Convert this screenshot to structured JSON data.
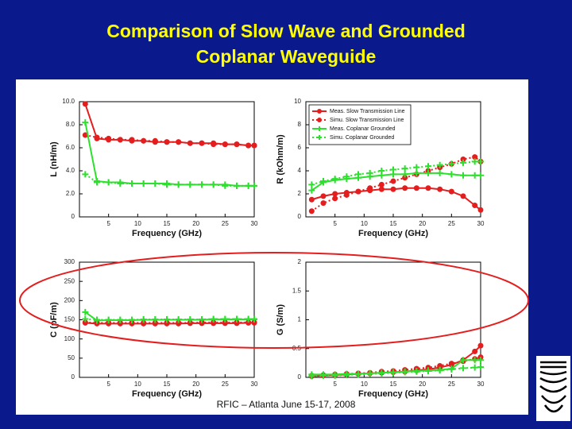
{
  "header": {
    "title_lines": [
      "Comparison of Slow Wave and Grounded",
      "Coplanar Waveguide"
    ]
  },
  "footer": "RFIC – Atlanta June 15-17, 2008",
  "chart_data": [
    {
      "type": "line",
      "xlabel": "Frequency (GHz)",
      "ylabel": "L (nH/m)",
      "x": [
        1,
        3,
        5,
        7,
        9,
        11,
        13,
        15,
        17,
        19,
        21,
        23,
        25,
        27,
        29,
        30
      ],
      "xlim": [
        0,
        30
      ],
      "xticks": [
        5,
        10,
        15,
        20,
        25,
        30
      ],
      "ylim": [
        0,
        10
      ],
      "yticks": [
        0,
        {
          "value": 2,
          "label": "2.0"
        },
        {
          "value": 4,
          "label": "4.0"
        },
        {
          "value": 6,
          "label": "6.0"
        },
        {
          "value": 8,
          "label": "8.0"
        },
        {
          "value": 10,
          "label": "10.0"
        }
      ],
      "grid": false,
      "series": [
        {
          "color": "#e41e1e",
          "line_style": "solid",
          "marker": "circle",
          "values": [
            9.8,
            6.8,
            6.7,
            6.7,
            6.6,
            6.6,
            6.5,
            6.5,
            6.5,
            6.4,
            6.4,
            6.4,
            6.3,
            6.3,
            6.2,
            6.2
          ]
        },
        {
          "color": "#e41e1e",
          "line_style": "dotted",
          "marker": "circle",
          "values": [
            7.1,
            6.9,
            6.8,
            6.7,
            6.7,
            6.6,
            6.6,
            6.5,
            6.5,
            6.4,
            6.4,
            6.3,
            6.3,
            6.3,
            6.2,
            6.2
          ]
        },
        {
          "color": "#2ee02e",
          "line_style": "solid",
          "marker": "plus",
          "values": [
            8.2,
            3.1,
            3.0,
            3.0,
            2.9,
            2.9,
            2.9,
            2.9,
            2.8,
            2.8,
            2.8,
            2.8,
            2.8,
            2.7,
            2.7,
            2.7
          ]
        },
        {
          "color": "#2ee02e",
          "line_style": "dotted",
          "marker": "plus",
          "values": [
            3.7,
            3.0,
            3.0,
            2.9,
            2.9,
            2.9,
            2.9,
            2.8,
            2.8,
            2.8,
            2.8,
            2.8,
            2.7,
            2.7,
            2.7,
            2.7
          ]
        }
      ]
    },
    {
      "type": "line",
      "xlabel": "Frequency (GHz)",
      "ylabel": "R (kOhm/m)",
      "x": [
        1,
        3,
        5,
        7,
        9,
        11,
        13,
        15,
        17,
        19,
        21,
        23,
        25,
        27,
        29,
        30
      ],
      "xlim": [
        0,
        30
      ],
      "xticks": [
        5,
        10,
        15,
        20,
        25,
        30
      ],
      "ylim": [
        0,
        10
      ],
      "yticks": [
        0,
        2,
        4,
        6,
        8,
        10
      ],
      "grid": false,
      "legend": "upper left",
      "series": [
        {
          "name": "Meas. Slow Transmission Line",
          "color": "#e41e1e",
          "line_style": "solid",
          "marker": "circle",
          "values": [
            1.5,
            1.8,
            2.0,
            2.1,
            2.2,
            2.3,
            2.4,
            2.4,
            2.5,
            2.5,
            2.5,
            2.4,
            2.2,
            1.8,
            1.0,
            0.6
          ]
        },
        {
          "name": "Simu. Slow Transmission Line",
          "color": "#e41e1e",
          "line_style": "dotted",
          "marker": "circle",
          "values": [
            0.5,
            1.2,
            1.6,
            1.9,
            2.2,
            2.5,
            2.8,
            3.1,
            3.4,
            3.7,
            4.0,
            4.3,
            4.6,
            5.0,
            5.2,
            4.8
          ]
        },
        {
          "name": "Meas. Coplanar Grounded",
          "color": "#2ee02e",
          "line_style": "solid",
          "marker": "plus",
          "values": [
            2.3,
            3.0,
            3.2,
            3.3,
            3.4,
            3.5,
            3.6,
            3.7,
            3.7,
            3.8,
            3.8,
            3.8,
            3.7,
            3.6,
            3.6,
            3.6
          ]
        },
        {
          "name": "Simu. Coplanar Grounded",
          "color": "#2ee02e",
          "line_style": "dotted",
          "marker": "plus",
          "values": [
            2.8,
            3.1,
            3.3,
            3.5,
            3.7,
            3.8,
            4.0,
            4.1,
            4.2,
            4.3,
            4.4,
            4.5,
            4.6,
            4.7,
            4.8,
            4.8
          ]
        }
      ]
    },
    {
      "type": "line",
      "xlabel": "Frequency (GHz)",
      "ylabel": "C (pF/m)",
      "x": [
        1,
        3,
        5,
        7,
        9,
        11,
        13,
        15,
        17,
        19,
        21,
        23,
        25,
        27,
        29,
        30
      ],
      "xlim": [
        0,
        30
      ],
      "xticks": [
        5,
        10,
        15,
        20,
        25,
        30
      ],
      "ylim": [
        0,
        300
      ],
      "yticks": [
        0,
        50,
        100,
        150,
        200,
        250,
        300
      ],
      "grid": false,
      "series": [
        {
          "color": "#e41e1e",
          "line_style": "solid",
          "marker": "circle",
          "values": [
            142,
            140,
            140,
            140,
            140,
            140,
            140,
            140,
            140,
            141,
            141,
            141,
            141,
            141,
            142,
            142
          ]
        },
        {
          "color": "#e41e1e",
          "line_style": "dotted",
          "marker": "circle",
          "values": [
            143,
            142,
            142,
            142,
            142,
            142,
            142,
            142,
            142,
            142,
            143,
            143,
            143,
            143,
            143,
            143
          ]
        },
        {
          "color": "#2ee02e",
          "line_style": "solid",
          "marker": "plus",
          "values": [
            170,
            148,
            149,
            149,
            149,
            150,
            150,
            150,
            150,
            150,
            150,
            151,
            151,
            151,
            151,
            151
          ]
        },
        {
          "color": "#2ee02e",
          "line_style": "dotted",
          "marker": "plus",
          "values": [
            152,
            150,
            150,
            150,
            150,
            151,
            151,
            151,
            151,
            151,
            151,
            152,
            152,
            152,
            152,
            152
          ]
        }
      ]
    },
    {
      "type": "line",
      "xlabel": "Frequency (GHz)",
      "ylabel": "G (S/m)",
      "x": [
        1,
        3,
        5,
        7,
        9,
        11,
        13,
        15,
        17,
        19,
        21,
        23,
        25,
        27,
        29,
        30
      ],
      "xlim": [
        0,
        30
      ],
      "xticks": [
        5,
        10,
        15,
        20,
        25,
        30
      ],
      "ylim": [
        0,
        2
      ],
      "yticks": [
        0,
        0.5,
        1,
        1.5,
        2
      ],
      "grid": false,
      "series": [
        {
          "color": "#e41e1e",
          "line_style": "solid",
          "marker": "circle",
          "values": [
            0.02,
            0.03,
            0.04,
            0.05,
            0.06,
            0.07,
            0.08,
            0.09,
            0.1,
            0.12,
            0.14,
            0.17,
            0.22,
            0.3,
            0.45,
            0.55
          ]
        },
        {
          "color": "#e41e1e",
          "line_style": "dotted",
          "marker": "circle",
          "values": [
            0.03,
            0.04,
            0.05,
            0.06,
            0.07,
            0.08,
            0.1,
            0.11,
            0.13,
            0.15,
            0.17,
            0.2,
            0.24,
            0.28,
            0.32,
            0.35
          ]
        },
        {
          "color": "#2ee02e",
          "line_style": "solid",
          "marker": "plus",
          "values": [
            0.05,
            0.05,
            0.05,
            0.06,
            0.06,
            0.07,
            0.08,
            0.09,
            0.1,
            0.11,
            0.12,
            0.13,
            0.15,
            0.3,
            0.3,
            0.3
          ]
        },
        {
          "color": "#2ee02e",
          "line_style": "dotted",
          "marker": "plus",
          "values": [
            0.02,
            0.03,
            0.03,
            0.04,
            0.05,
            0.06,
            0.07,
            0.08,
            0.09,
            0.1,
            0.11,
            0.12,
            0.14,
            0.16,
            0.17,
            0.18
          ]
        }
      ]
    }
  ]
}
